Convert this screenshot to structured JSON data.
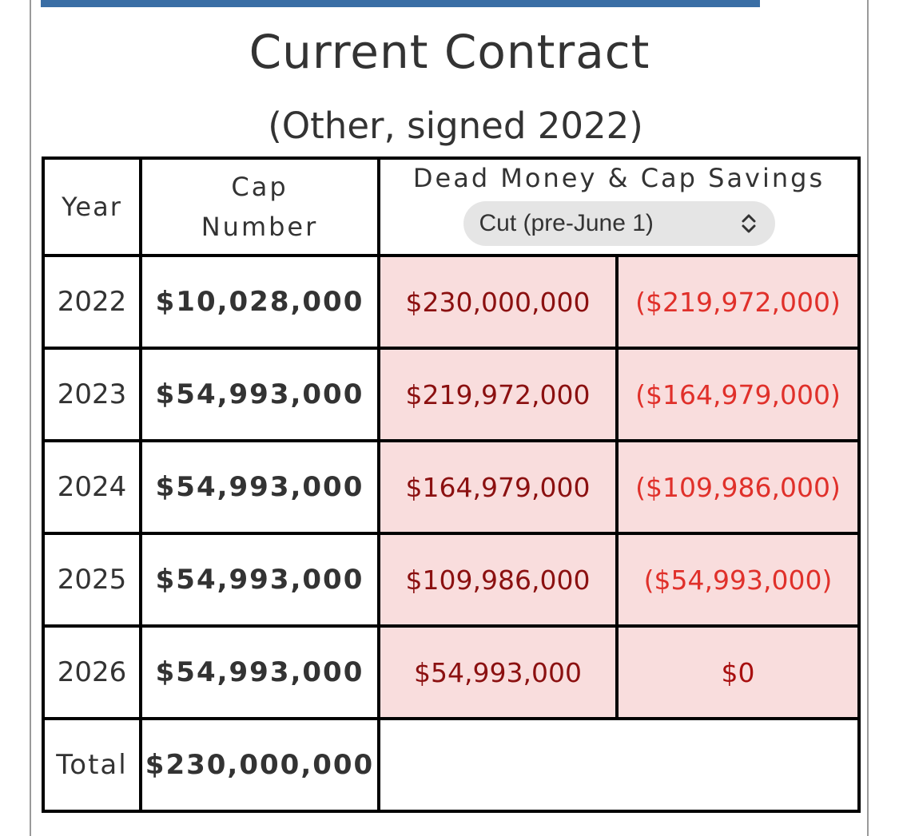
{
  "header": {
    "title": "Current Contract",
    "subtitle": "(Other, signed 2022)"
  },
  "table": {
    "columns": {
      "year": "Year",
      "cap_line1": "Cap",
      "cap_line2": "Number",
      "dead": "Dead Money & Cap Savings"
    },
    "scenario_select": {
      "value": "Cut (pre-June 1)",
      "icon": "chevron-up-down-icon"
    },
    "rows": [
      {
        "year": "2022",
        "cap": "$10,028,000",
        "dead": "$230,000,000",
        "savings": "($219,972,000)"
      },
      {
        "year": "2023",
        "cap": "$54,993,000",
        "dead": "$219,972,000",
        "savings": "($164,979,000)"
      },
      {
        "year": "2024",
        "cap": "$54,993,000",
        "dead": "$164,979,000",
        "savings": "($109,986,000)"
      },
      {
        "year": "2025",
        "cap": "$54,993,000",
        "dead": "$109,986,000",
        "savings": "($54,993,000)"
      },
      {
        "year": "2026",
        "cap": "$54,993,000",
        "dead": "$54,993,000",
        "savings": "$0"
      }
    ],
    "total": {
      "label": "Total",
      "cap": "$230,000,000"
    }
  },
  "colors": {
    "accent_bar": "#3a6ea5",
    "dead_cell_bg": "#f9dddd",
    "dead_text": "#8b1010",
    "savings_text": "#e0302a"
  }
}
